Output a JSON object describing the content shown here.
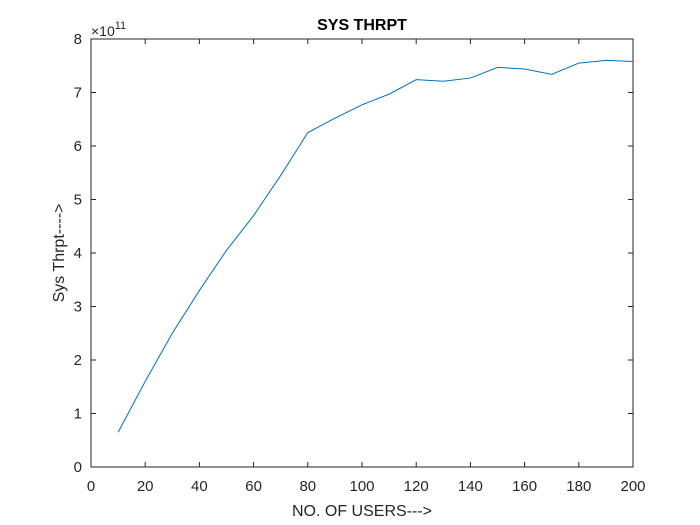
{
  "chart_data": {
    "type": "line",
    "title": "SYS THRPT",
    "xlabel": "NO. OF USERS--->",
    "ylabel": "Sys Thrpt---->",
    "y_exponent_label": {
      "times": "×10",
      "power": "11"
    },
    "xlim": [
      0,
      200
    ],
    "ylim": [
      0,
      8
    ],
    "xticks": [
      0,
      20,
      40,
      60,
      80,
      100,
      120,
      140,
      160,
      180,
      200
    ],
    "yticks": [
      0,
      1,
      2,
      3,
      4,
      5,
      6,
      7,
      8
    ],
    "grid": false,
    "series": [
      {
        "color": "#0072BD",
        "x": [
          10,
          20,
          30,
          40,
          50,
          60,
          70,
          80,
          90,
          100,
          110,
          120,
          130,
          140,
          150,
          160,
          170,
          180,
          190,
          200
        ],
        "y": [
          0.65,
          1.6,
          2.5,
          3.3,
          4.05,
          4.7,
          5.45,
          6.25,
          6.52,
          6.77,
          6.97,
          7.24,
          7.21,
          7.27,
          7.47,
          7.44,
          7.34,
          7.55,
          7.6,
          7.58
        ]
      }
    ]
  }
}
